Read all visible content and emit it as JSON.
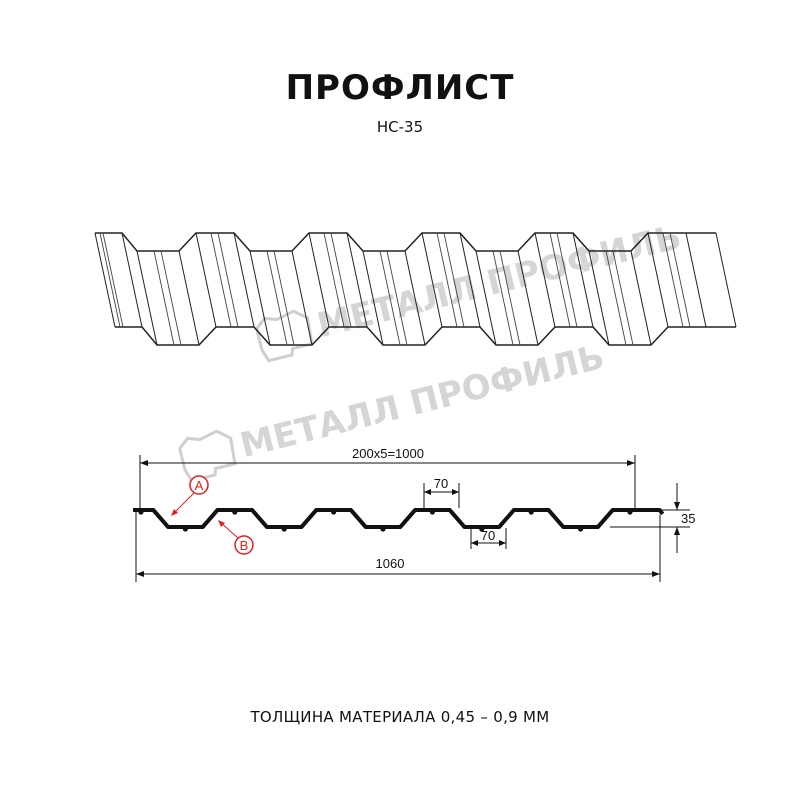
{
  "header": {
    "title": "ПРОФЛИСТ",
    "subtitle": "НС-35"
  },
  "watermark": {
    "text": "МЕТАЛЛ ПРОФИЛЬ"
  },
  "drawing": {
    "overall_width_label": "1060",
    "useful_width_label": "200x5=1000",
    "crest_width_label": "70",
    "trough_width_label": "70",
    "height_label": "35",
    "callout_a": "A",
    "callout_b": "B"
  },
  "footer": {
    "note": "ТОЛЩИНА МАТЕРИАЛА 0,45 – 0,9 ММ"
  },
  "colors": {
    "line": "#111111",
    "callout": "#e02020",
    "watermark": "#c8c8c8"
  }
}
